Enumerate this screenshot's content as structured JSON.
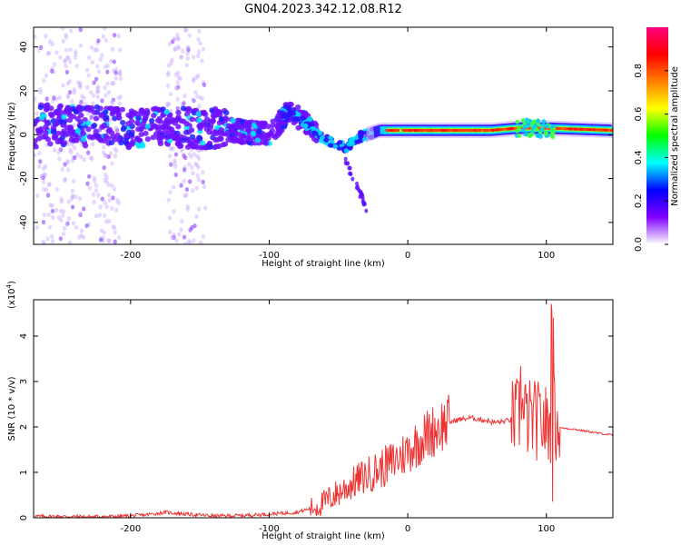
{
  "title": "GN04.2023.342.12.08.R12",
  "chart_data": [
    {
      "type": "heatmap",
      "xlabel": "Height of straight line (km)",
      "ylabel": "Frequency (Hz)",
      "xlim": [
        -270,
        148
      ],
      "ylim": [
        -50,
        49
      ],
      "xticks": [
        -200,
        -100,
        0,
        100
      ],
      "xtick_labels": [
        "-200",
        "-100",
        "0",
        "100"
      ],
      "yticks": [
        -40,
        -20,
        0,
        20,
        40
      ],
      "ytick_labels": [
        "-40",
        "-20",
        "0",
        "20",
        "40"
      ],
      "grid": false,
      "colorbar": {
        "label": "Normalized spectral amplitude",
        "range": [
          0,
          1
        ],
        "ticks": [
          0.0,
          0.2,
          0.4,
          0.6,
          0.8
        ],
        "tick_labels": [
          "0.0",
          "0.2",
          "0.4",
          "0.6",
          "0.8"
        ],
        "colormap": [
          "#ffffff",
          "#8000ff",
          "#0000ff",
          "#00ffff",
          "#00ff00",
          "#ffff00",
          "#ff8000",
          "#ff0000",
          "#ff0080"
        ]
      },
      "ridge": [
        {
          "x": -265,
          "y": 5
        },
        {
          "x": -200,
          "y": 3
        },
        {
          "x": -140,
          "y": 3
        },
        {
          "x": -100,
          "y": 0
        },
        {
          "x": -85,
          "y": 11
        },
        {
          "x": -75,
          "y": 6
        },
        {
          "x": -60,
          "y": -2
        },
        {
          "x": -45,
          "y": -6
        },
        {
          "x": -35,
          "y": -1
        },
        {
          "x": -20,
          "y": 2
        },
        {
          "x": 0,
          "y": 2
        },
        {
          "x": 60,
          "y": 2
        },
        {
          "x": 80,
          "y": 3
        },
        {
          "x": 100,
          "y": 3
        },
        {
          "x": 148,
          "y": 2
        }
      ]
    },
    {
      "type": "line",
      "xlabel": "Height of straight line (km)",
      "ylabel": "SNR (10 * v/v)",
      "yscale_label": "(x10",
      "yscale_exponent": "4",
      "yscale_suffix": ")",
      "xlim": [
        -270,
        148
      ],
      "ylim": [
        0,
        4.8
      ],
      "xticks": [
        -200,
        -100,
        0,
        100
      ],
      "xtick_labels": [
        "-200",
        "-100",
        "0",
        "100"
      ],
      "yticks": [
        0,
        1,
        2,
        3,
        4
      ],
      "ytick_labels": [
        "0",
        "1",
        "2",
        "3",
        "4"
      ],
      "grid": false,
      "color": "#ee3333",
      "series": [
        {
          "x": [
            -270,
            -250,
            -230,
            -210,
            -190,
            -175,
            -160,
            -140,
            -120,
            -100,
            -80,
            -65,
            -55,
            -45,
            -35,
            -25,
            -15,
            -5,
            5,
            15,
            25,
            35,
            45,
            55,
            62,
            70,
            78,
            82,
            86,
            92,
            98,
            102,
            106,
            110,
            120,
            130,
            140,
            148
          ],
          "y": [
            0.03,
            0.03,
            0.02,
            0.03,
            0.06,
            0.12,
            0.08,
            0.04,
            0.05,
            0.08,
            0.12,
            0.25,
            0.45,
            0.65,
            0.85,
            1.0,
            1.15,
            1.35,
            1.6,
            1.85,
            2.05,
            2.15,
            2.2,
            2.15,
            2.1,
            2.12,
            2.2,
            2.25,
            2.2,
            2.15,
            2.1,
            2.0,
            2.15,
            1.98,
            1.95,
            1.9,
            1.85,
            1.82
          ]
        }
      ]
    }
  ]
}
